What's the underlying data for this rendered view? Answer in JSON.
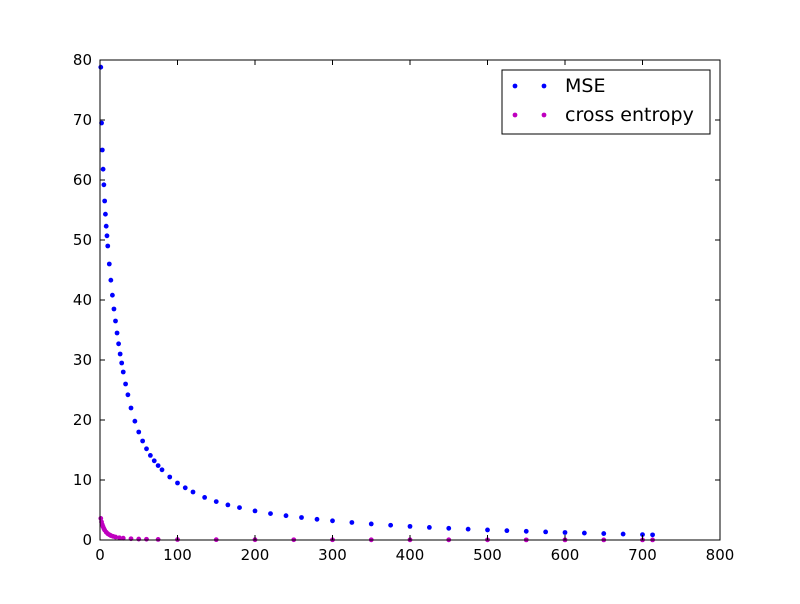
{
  "chart_data": {
    "type": "scatter",
    "title": "",
    "xlabel": "",
    "ylabel": "",
    "xlim": [
      0,
      800
    ],
    "ylim": [
      0,
      80
    ],
    "xticks": [
      0,
      100,
      200,
      300,
      400,
      500,
      600,
      700,
      800
    ],
    "yticks": [
      0,
      10,
      20,
      30,
      40,
      50,
      60,
      70,
      80
    ],
    "grid": false,
    "legend": {
      "placement": "top-right",
      "entries": [
        "MSE",
        "cross entropy"
      ]
    },
    "series": [
      {
        "name": "MSE",
        "color": "#0000ff",
        "x": [
          1,
          2,
          3,
          4,
          5,
          6,
          7,
          8,
          9,
          10,
          12,
          14,
          16,
          18,
          20,
          22,
          24,
          26,
          28,
          30,
          33,
          36,
          40,
          45,
          50,
          55,
          60,
          65,
          70,
          75,
          80,
          90,
          100,
          110,
          120,
          135,
          150,
          165,
          180,
          200,
          220,
          240,
          260,
          280,
          300,
          325,
          350,
          375,
          400,
          425,
          450,
          475,
          500,
          525,
          550,
          575,
          600,
          625,
          650,
          675,
          700,
          713
        ],
        "y": [
          78.8,
          69.5,
          65.0,
          61.8,
          59.2,
          56.5,
          54.3,
          52.3,
          50.7,
          49.0,
          46.0,
          43.3,
          40.8,
          38.5,
          36.5,
          34.5,
          32.7,
          31.0,
          29.5,
          28.0,
          26.0,
          24.2,
          22.0,
          19.8,
          18.0,
          16.5,
          15.2,
          14.1,
          13.2,
          12.4,
          11.7,
          10.5,
          9.5,
          8.7,
          8.0,
          7.1,
          6.4,
          5.85,
          5.4,
          4.85,
          4.4,
          4.05,
          3.75,
          3.45,
          3.2,
          2.92,
          2.68,
          2.46,
          2.27,
          2.1,
          1.95,
          1.81,
          1.68,
          1.56,
          1.45,
          1.35,
          1.25,
          1.16,
          1.07,
          0.99,
          0.9,
          0.86
        ]
      },
      {
        "name": "cross entropy",
        "color": "#bf00bf",
        "x": [
          1,
          2,
          3,
          4,
          5,
          6,
          8,
          10,
          12,
          14,
          17,
          20,
          25,
          30,
          40,
          50,
          60,
          75,
          100,
          150,
          200,
          250,
          300,
          350,
          400,
          450,
          500,
          550,
          600,
          650,
          700,
          713
        ],
        "y": [
          3.6,
          3.0,
          2.55,
          2.2,
          1.9,
          1.65,
          1.3,
          1.05,
          0.88,
          0.74,
          0.6,
          0.5,
          0.38,
          0.3,
          0.21,
          0.16,
          0.13,
          0.1,
          0.08,
          0.06,
          0.05,
          0.045,
          0.04,
          0.035,
          0.03,
          0.028,
          0.025,
          0.022,
          0.02,
          0.018,
          0.016,
          0.015
        ]
      }
    ]
  }
}
